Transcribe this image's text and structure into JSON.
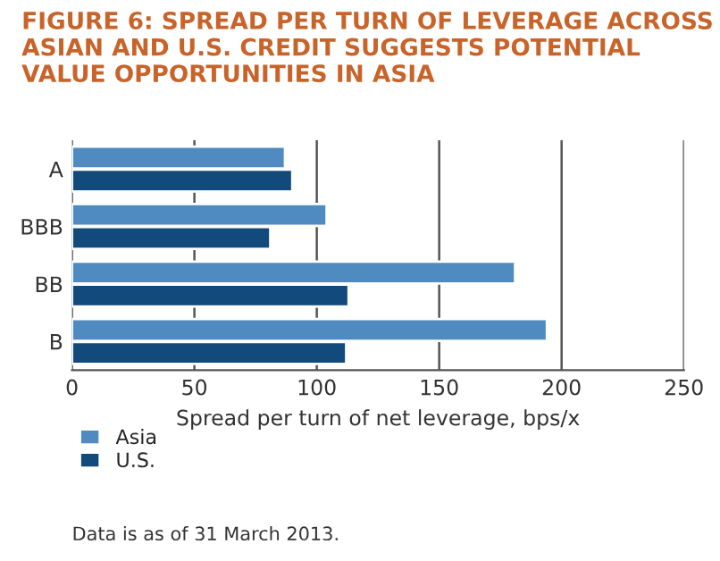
{
  "chart_data": {
    "type": "bar",
    "orientation": "horizontal",
    "title": "FIGURE 6: SPREAD PER TURN OF LEVERAGE ACROSS ASIAN AND U.S. CREDIT SUGGESTS POTENTIAL VALUE OPPORTUNITIES IN ASIA",
    "xlabel": "Spread per turn of net leverage, bps/x",
    "categories": [
      "A",
      "BBB",
      "BB",
      "B"
    ],
    "series": [
      {
        "name": "Asia",
        "color": "#4f8bc0",
        "values": [
          87,
          104,
          181,
          194
        ]
      },
      {
        "name": "U.S.",
        "color": "#134a7c",
        "values": [
          90,
          81,
          113,
          112
        ]
      }
    ],
    "xlim": [
      0,
      250
    ],
    "xticks": [
      0,
      50,
      100,
      150,
      200,
      250
    ],
    "grid": "x",
    "legend": "bottom left",
    "annotations": [
      "Data is as of 31 March 2013."
    ]
  }
}
